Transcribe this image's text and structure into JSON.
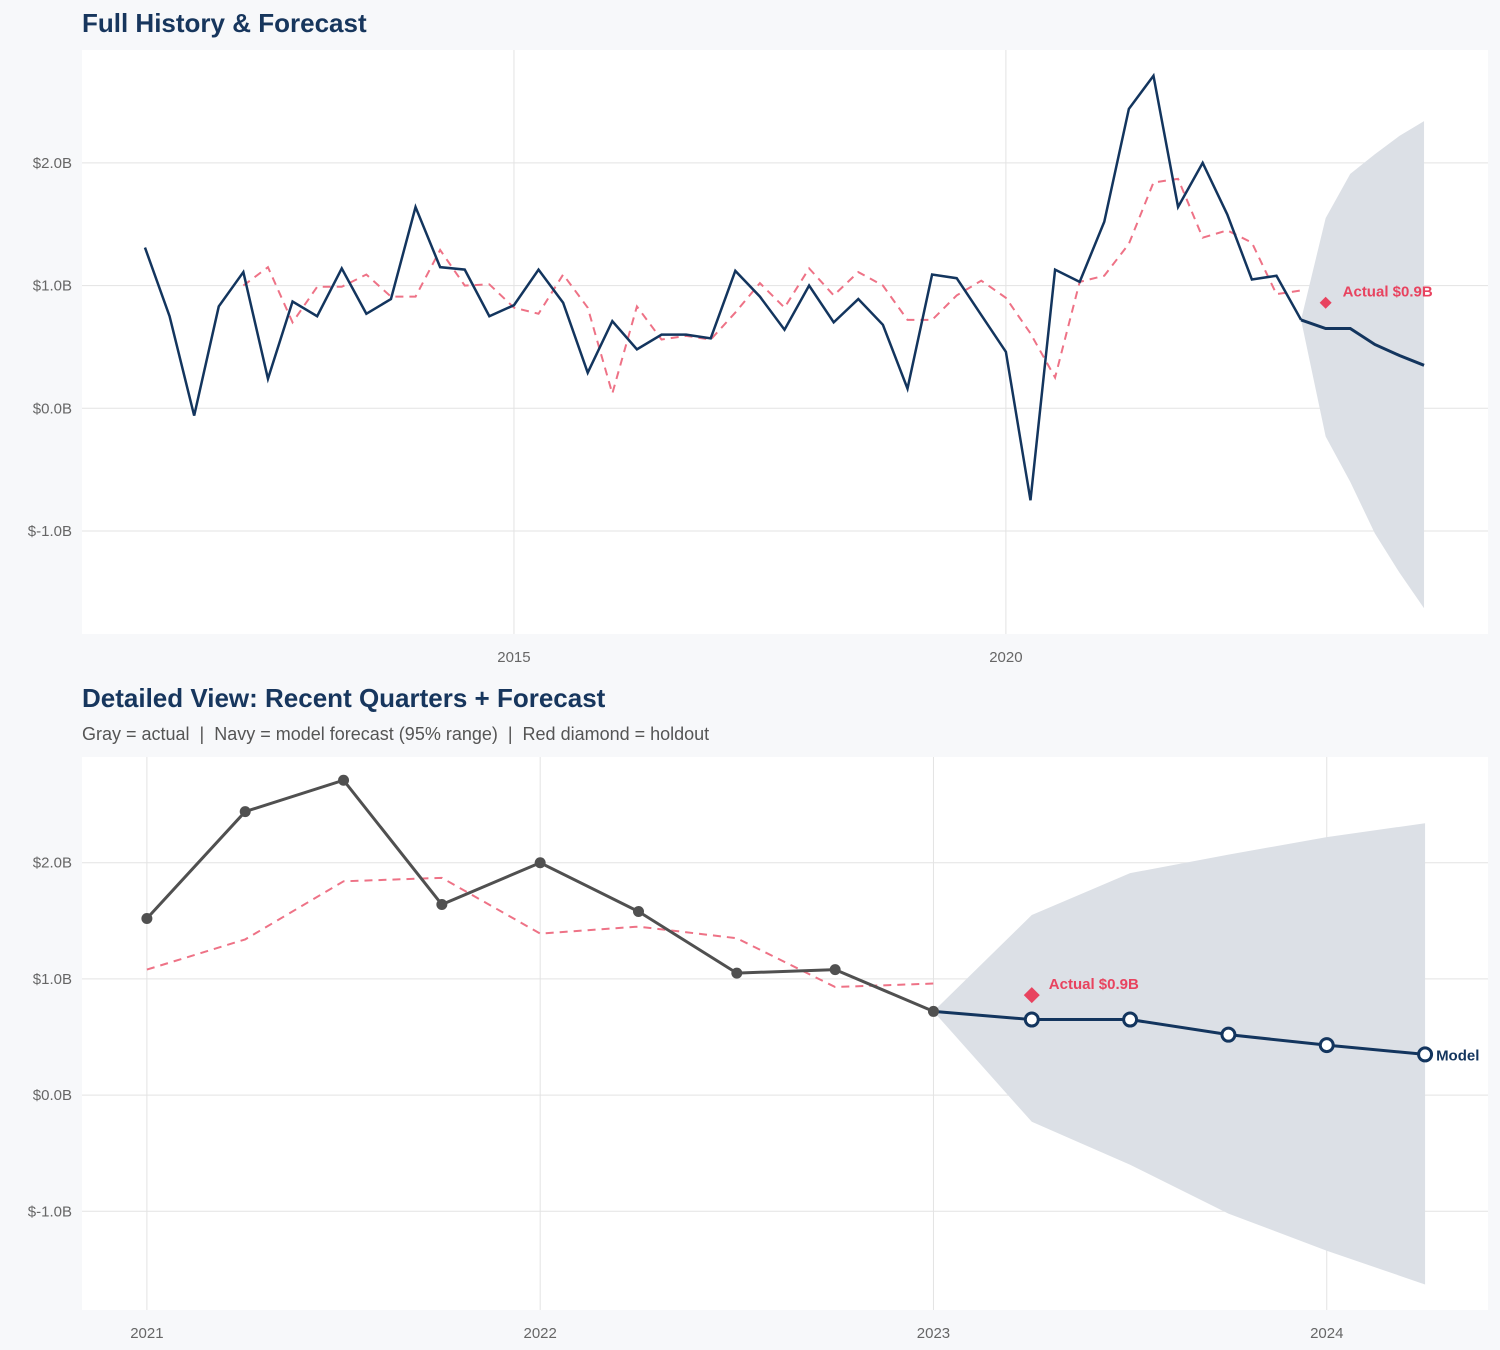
{
  "colors": {
    "actual_top": "#13355e",
    "actual_bottom": "#505050",
    "fitted": "#ee7286",
    "forecast": "#13355e",
    "band": "#dce0e6",
    "holdout": "#e8435f",
    "background": "#f7f8fa"
  },
  "chart_data": [
    {
      "type": "line",
      "title": "Full History & Forecast",
      "xlim": [
        2010.61,
        2024.9
      ],
      "ylim": [
        -1.84,
        2.92
      ],
      "x_ticks": [
        2015,
        2020
      ],
      "x_tick_labels": [
        "2015",
        "2020"
      ],
      "y_ticks": [
        -1,
        0,
        1,
        2
      ],
      "y_tick_labels": [
        "$-1.0B",
        "$0.0B",
        "$1.0B",
        "$2.0B"
      ],
      "grid": true,
      "actual": {
        "x": [
          2011.25,
          2011.5,
          2011.75,
          2012,
          2012.25,
          2012.5,
          2012.75,
          2013,
          2013.25,
          2013.5,
          2013.75,
          2014,
          2014.25,
          2014.5,
          2014.75,
          2015,
          2015.25,
          2015.5,
          2015.75,
          2016,
          2016.25,
          2016.5,
          2016.75,
          2017,
          2017.25,
          2017.5,
          2017.75,
          2018,
          2018.25,
          2018.5,
          2018.75,
          2019,
          2019.25,
          2019.5,
          2019.75,
          2020,
          2020.25,
          2020.5,
          2020.75,
          2021,
          2021.25,
          2021.5,
          2021.75,
          2022,
          2022.25,
          2022.5,
          2022.75,
          2023
        ],
        "y": [
          1.31,
          0.75,
          -0.06,
          0.83,
          1.11,
          0.24,
          0.87,
          0.75,
          1.14,
          0.77,
          0.89,
          1.64,
          1.15,
          1.13,
          0.75,
          0.84,
          1.13,
          0.86,
          0.29,
          0.71,
          0.48,
          0.6,
          0.6,
          0.57,
          1.12,
          0.91,
          0.64,
          1.0,
          0.7,
          0.89,
          0.68,
          0.16,
          1.09,
          1.06,
          0.76,
          0.46,
          -0.75,
          1.13,
          1.03,
          1.52,
          2.44,
          2.71,
          1.64,
          2.0,
          1.58,
          1.05,
          1.08,
          0.72
        ]
      },
      "fitted": {
        "x": [
          2012.25,
          2012.5,
          2012.75,
          2013,
          2013.25,
          2013.5,
          2013.75,
          2014,
          2014.25,
          2014.5,
          2014.75,
          2015,
          2015.25,
          2015.5,
          2015.75,
          2016,
          2016.25,
          2016.5,
          2016.75,
          2017,
          2017.25,
          2017.5,
          2017.75,
          2018,
          2018.25,
          2018.5,
          2018.75,
          2019,
          2019.25,
          2019.5,
          2019.75,
          2020,
          2020.25,
          2020.5,
          2020.75,
          2021,
          2021.25,
          2021.5,
          2021.75,
          2022,
          2022.25,
          2022.5,
          2022.75,
          2023
        ],
        "y": [
          1.0,
          1.15,
          0.7,
          0.99,
          0.99,
          1.09,
          0.91,
          0.91,
          1.29,
          1.0,
          1.01,
          0.82,
          0.77,
          1.09,
          0.82,
          0.12,
          0.83,
          0.56,
          0.59,
          0.56,
          0.78,
          1.02,
          0.82,
          1.14,
          0.92,
          1.11,
          1.0,
          0.72,
          0.72,
          0.92,
          1.04,
          0.9,
          0.61,
          0.25,
          1.03,
          1.08,
          1.34,
          1.84,
          1.87,
          1.39,
          1.45,
          1.35,
          0.93,
          0.96
        ]
      },
      "forecast": {
        "x": [
          2023,
          2023.25,
          2023.5,
          2023.75,
          2024,
          2024.25
        ],
        "y": [
          0.72,
          0.65,
          0.65,
          0.52,
          0.43,
          0.35
        ],
        "lower": [
          0.72,
          -0.23,
          -0.6,
          -1.02,
          -1.34,
          -1.63
        ],
        "upper": [
          0.72,
          1.55,
          1.91,
          2.07,
          2.22,
          2.34
        ]
      },
      "holdout": {
        "x": 2023.25,
        "y": 0.86,
        "label": "Actual $0.9B"
      }
    },
    {
      "type": "line",
      "title": "Detailed View: Recent Quarters + Forecast",
      "subtitle": "Gray = actual  |  Navy = model forecast (95% range)  |  Red diamond = holdout",
      "xlim": [
        2020.835,
        2024.41
      ],
      "ylim": [
        -1.85,
        2.91
      ],
      "x_ticks": [
        2021,
        2022,
        2023,
        2024
      ],
      "x_tick_labels": [
        "2021",
        "2022",
        "2023",
        "2024"
      ],
      "y_ticks": [
        -1,
        0,
        1,
        2
      ],
      "y_tick_labels": [
        "$-1.0B",
        "$0.0B",
        "$1.0B",
        "$2.0B"
      ],
      "grid": true,
      "actual": {
        "x": [
          2021,
          2021.25,
          2021.5,
          2021.75,
          2022,
          2022.25,
          2022.5,
          2022.75,
          2023
        ],
        "y": [
          1.52,
          2.44,
          2.71,
          1.64,
          2.0,
          1.58,
          1.05,
          1.08,
          0.72
        ]
      },
      "fitted": {
        "x": [
          2021,
          2021.25,
          2021.5,
          2021.75,
          2022,
          2022.25,
          2022.5,
          2022.75,
          2023
        ],
        "y": [
          1.08,
          1.34,
          1.84,
          1.87,
          1.39,
          1.45,
          1.35,
          0.93,
          0.96
        ]
      },
      "forecast": {
        "x": [
          2023,
          2023.25,
          2023.5,
          2023.75,
          2024,
          2024.25
        ],
        "y": [
          0.72,
          0.65,
          0.65,
          0.52,
          0.43,
          0.35
        ],
        "lower": [
          0.72,
          -0.23,
          -0.6,
          -1.02,
          -1.34,
          -1.63
        ],
        "upper": [
          0.72,
          1.55,
          1.91,
          2.07,
          2.22,
          2.34
        ],
        "label": "Model"
      },
      "holdout": {
        "x": 2023.25,
        "y": 0.86,
        "label": "Actual $0.9B"
      }
    }
  ]
}
